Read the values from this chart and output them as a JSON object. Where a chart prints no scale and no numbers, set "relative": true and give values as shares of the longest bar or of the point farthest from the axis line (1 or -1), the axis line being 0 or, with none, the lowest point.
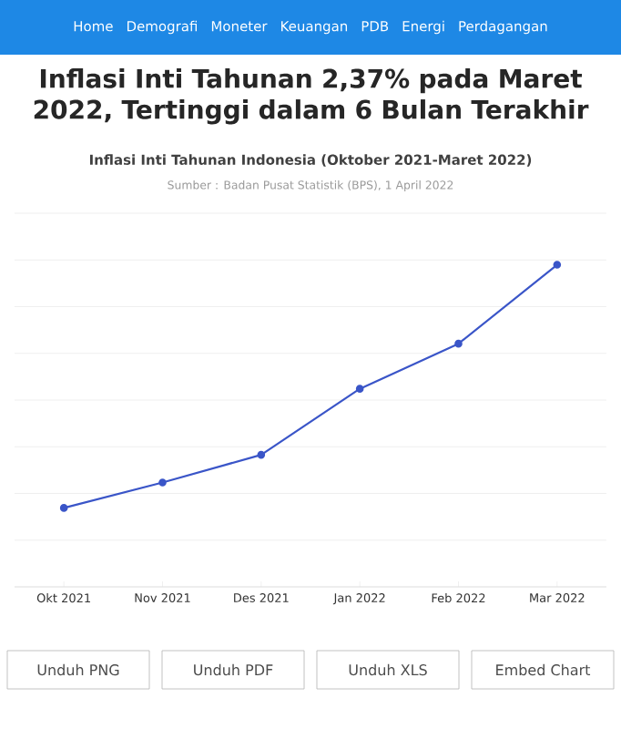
{
  "chart_data": {
    "type": "line",
    "title": "Inflasi Inti Tahunan 2,37% pada Maret 2022, Tertinggi dalam 6 Bulan Terakhir",
    "subtitle": "Inflasi Inti Tahunan Indonesia (Oktober 2021-Maret 2022)",
    "categories": [
      "Okt 2021",
      "Nov 2021",
      "Des 2021",
      "Jan 2022",
      "Feb 2022",
      "Mar 2022"
    ],
    "series": [
      {
        "color": "#3a55c8",
        "values": [
          0.245,
          0.324,
          0.41,
          0.615,
          0.755,
          1.0
        ]
      }
    ],
    "relative": true,
    "grid": "y",
    "marker": "circle",
    "line_style": "solid",
    "annotations": [
      "Sumber : Badan Pusat Statistik (BPS), 1 April 2022",
      "Home",
      "Demografi",
      "Moneter",
      "Keuangan",
      "PDB",
      "Energi",
      "Perdagangan",
      "Unduh PNG",
      "Unduh PDF",
      "Unduh XLS",
      "Embed Chart"
    ]
  }
}
